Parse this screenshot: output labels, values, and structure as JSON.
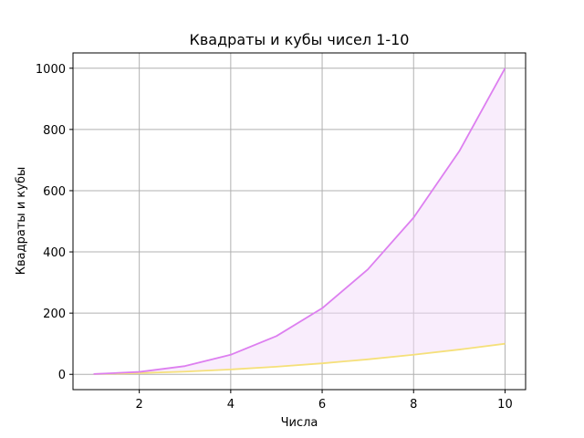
{
  "chart_data": {
    "type": "area",
    "title": "Квадраты и кубы чисел 1-10",
    "xlabel": "Числа",
    "ylabel": "Квадраты и кубы",
    "x": [
      1,
      2,
      3,
      4,
      5,
      6,
      7,
      8,
      9,
      10
    ],
    "series": [
      {
        "values": [
          1,
          4,
          9,
          16,
          25,
          36,
          49,
          64,
          81,
          100
        ],
        "color": "#f5e07a"
      },
      {
        "values": [
          1,
          8,
          27,
          64,
          125,
          216,
          343,
          512,
          729,
          1000
        ],
        "color": "#dd7ff0"
      }
    ],
    "fill_between": {
      "color": "#f3dcf9",
      "opacity": 0.5
    },
    "xlim": [
      0.55,
      10.45
    ],
    "ylim": [
      -49.95,
      1049.95
    ],
    "xticks": [
      2,
      4,
      6,
      8,
      10
    ],
    "yticks": [
      0,
      200,
      400,
      600,
      800,
      1000
    ],
    "grid": true
  }
}
